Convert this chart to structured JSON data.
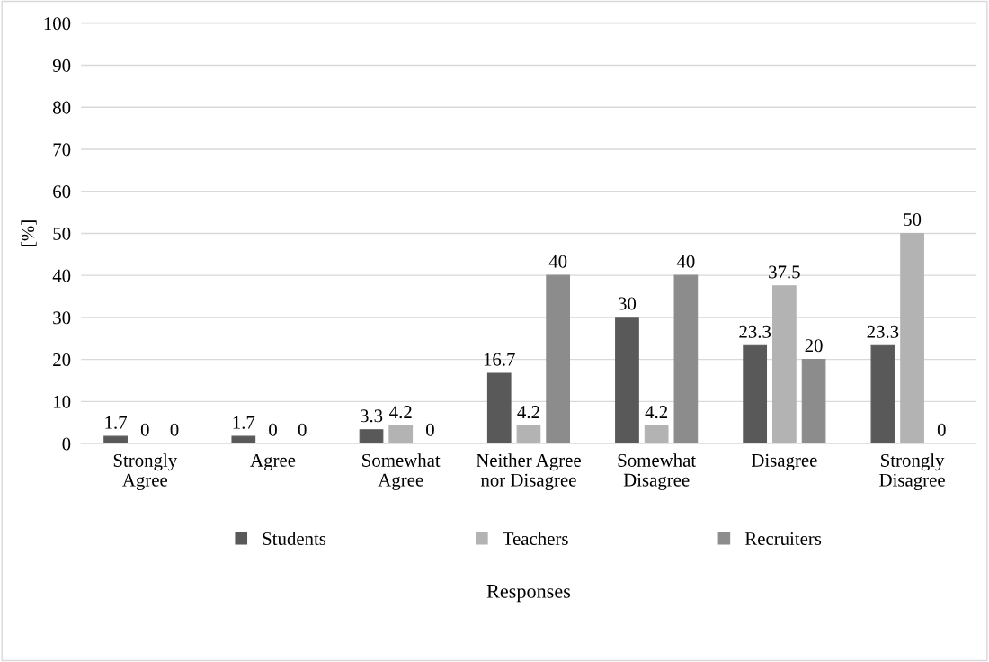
{
  "chart_data": {
    "type": "bar",
    "xlabel": "Responses",
    "ylabel": "[%]",
    "categories": [
      "Strongly\nAgree",
      "Agree",
      "Somewhat\nAgree",
      "Neither Agree\nnor Disagree",
      "Somewhat\nDisagree",
      "Disagree",
      "Strongly\nDisagree"
    ],
    "series": [
      {
        "name": "Students",
        "color": "#595959",
        "values": [
          1.7,
          1.7,
          3.3,
          16.7,
          30,
          23.3,
          23.3
        ]
      },
      {
        "name": "Teachers",
        "color": "#b3b3b3",
        "values": [
          0,
          0,
          4.2,
          4.2,
          4.2,
          37.5,
          50
        ]
      },
      {
        "name": "Recruiters",
        "color": "#8c8c8c",
        "values": [
          0,
          0,
          0,
          40,
          40,
          20,
          0
        ]
      }
    ],
    "ylim": [
      0,
      100
    ],
    "yticks": [
      0,
      10,
      20,
      30,
      40,
      50,
      60,
      70,
      80,
      90,
      100
    ],
    "grid": "y",
    "legend": "bottom",
    "data_labels": true
  }
}
